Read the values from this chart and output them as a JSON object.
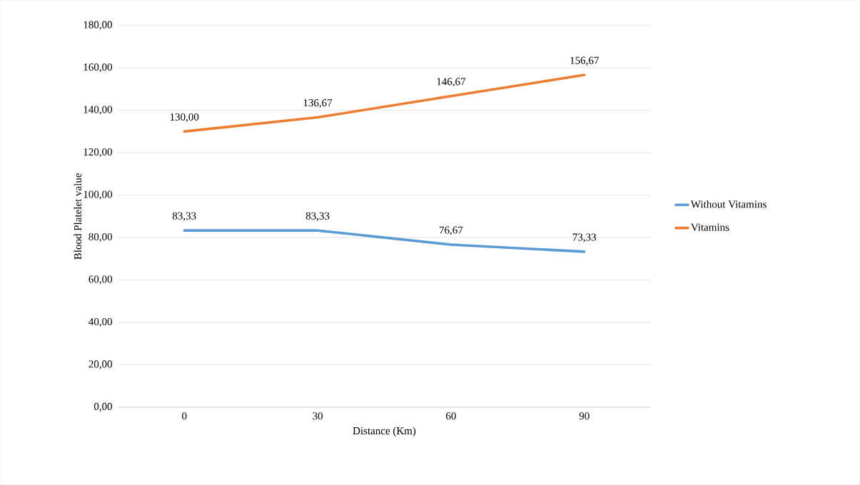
{
  "chart_data": {
    "type": "line",
    "xlabel": "Distance (Km)",
    "ylabel": "Blood Platelet value",
    "categories": [
      "0",
      "30",
      "60",
      "90"
    ],
    "series": [
      {
        "name": "Without Vitamins",
        "color": "#5b9bd5",
        "values": [
          83.33,
          83.33,
          76.67,
          73.33
        ],
        "value_labels": [
          "83,33",
          "83,33",
          "76,67",
          "73,33"
        ]
      },
      {
        "name": "Vitamins",
        "color": "#ed7d31",
        "values": [
          130.0,
          136.67,
          146.67,
          156.67
        ],
        "value_labels": [
          "130,00",
          "136,67",
          "146,67",
          "156,67"
        ]
      }
    ],
    "ylim": [
      0,
      180
    ],
    "yticks": [
      {
        "value": 0,
        "label": "0,00"
      },
      {
        "value": 20,
        "label": "20,00"
      },
      {
        "value": 40,
        "label": "40,00"
      },
      {
        "value": 60,
        "label": "60,00"
      },
      {
        "value": 80,
        "label": "80,00"
      },
      {
        "value": 100,
        "label": "100,00"
      },
      {
        "value": 120,
        "label": "120,00"
      },
      {
        "value": 140,
        "label": "140,00"
      },
      {
        "value": 160,
        "label": "160,00"
      },
      {
        "value": 180,
        "label": "180,00"
      }
    ],
    "grid": "y",
    "legend": "right",
    "line_style": "solid"
  }
}
